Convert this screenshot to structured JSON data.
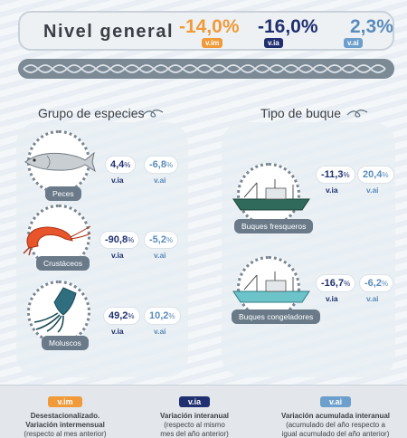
{
  "header": {
    "title": "Nivel general",
    "values": {
      "vim": "-14,0%",
      "via": "-16,0%",
      "vai": "2,3%"
    },
    "badges": {
      "vim": "v.im",
      "via": "v.ia",
      "vai": "v.ai"
    }
  },
  "species": {
    "title": "Grupo de especies",
    "items": [
      {
        "label": "Peces",
        "via": "4,4",
        "vai": "-6,8",
        "icon": "fish-icon"
      },
      {
        "label": "Crustáceos",
        "via": "-90,8",
        "vai": "-5,2",
        "icon": "shrimp-icon"
      },
      {
        "label": "Moluscos",
        "via": "49,2",
        "vai": "10,2",
        "icon": "squid-icon"
      }
    ]
  },
  "vessels": {
    "title": "Tipo de buque",
    "items": [
      {
        "label": "Buques fresqueros",
        "via": "-11,3",
        "vai": "20,4",
        "icon": "fresh-trawler-icon"
      },
      {
        "label": "Buques congeladores",
        "via": "-16,7",
        "vai": "-6,2",
        "icon": "freezer-trawler-icon"
      }
    ]
  },
  "units": {
    "pct": "%",
    "via": "v.ia",
    "vai": "v.ai"
  },
  "legend": {
    "vim": {
      "badge": "v.im",
      "line1": "Desestacionalizado.",
      "line2": "Variación intermensual",
      "line3": "(respecto al mes anterior)"
    },
    "via": {
      "badge": "v.ia",
      "line1": "Variación interanual",
      "line2": "(respecto al mismo",
      "line3": "mes del año anterior)"
    },
    "vai": {
      "badge": "v.ai",
      "line1": "Variación acumulada interanual",
      "line2": "(acumulado del año respecto a",
      "line3": "igual acumulado del año anterior)"
    }
  },
  "colors": {
    "vim": "#f09a3a",
    "via": "#1f2f6f",
    "vai": "#5a8cbb",
    "label": "#6a7a89"
  }
}
